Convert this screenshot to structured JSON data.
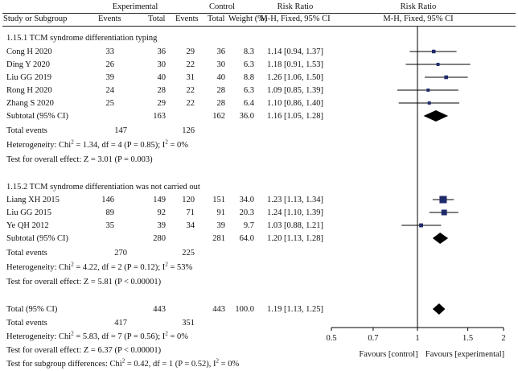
{
  "header": {
    "experimental": "Experimental",
    "control": "Control",
    "risk_ratio": "Risk Ratio",
    "study_or_subgroup": "Study or Subgroup",
    "events": "Events",
    "total": "Total",
    "weight": "Weight (%)",
    "method": "M-H, Fixed, 95% CI"
  },
  "subgroups": [
    {
      "title": "1.15.1 TCM syndrome differentiation typing",
      "studies": [
        {
          "name": "Cong H 2020",
          "exp_events": "33",
          "exp_total": "36",
          "ctrl_events": "29",
          "ctrl_total": "36",
          "weight": "8.3",
          "ci": "1.14 [0.94, 1.37]"
        },
        {
          "name": "Ding Y 2020",
          "exp_events": "26",
          "exp_total": "30",
          "ctrl_events": "22",
          "ctrl_total": "30",
          "weight": "6.3",
          "ci": "1.18 [0.91, 1.53]"
        },
        {
          "name": "Liu GG 2019",
          "exp_events": "39",
          "exp_total": "40",
          "ctrl_events": "31",
          "ctrl_total": "40",
          "weight": "8.8",
          "ci": "1.26 [1.06, 1.50]"
        },
        {
          "name": "Rong H 2020",
          "exp_events": "24",
          "exp_total": "28",
          "ctrl_events": "22",
          "ctrl_total": "28",
          "weight": "6.3",
          "ci": "1.09 [0.85, 1.39]"
        },
        {
          "name": "Zhang S 2020",
          "exp_events": "25",
          "exp_total": "29",
          "ctrl_events": "22",
          "ctrl_total": "28",
          "weight": "6.4",
          "ci": "1.10 [0.86, 1.40]"
        }
      ],
      "subtotal": {
        "label": "Subtotal (95% CI)",
        "exp_total": "163",
        "ctrl_total": "162",
        "weight": "36.0",
        "ci": "1.16 [1.05, 1.28]"
      },
      "total_events": {
        "label": "Total events",
        "exp": "147",
        "ctrl": "126"
      },
      "heterogeneity": {
        "prefix": "Heterogeneity: Chi",
        "sup1": "2",
        "mid": " = 1.34, df = 4 (P = 0.85); I",
        "sup2": "2",
        "suffix": " = 0%"
      },
      "overall_effect": "Test for overall effect: Z = 3.01 (P = 0.003)"
    },
    {
      "title": "1.15.2 TCM syndrome differentiation was not carried out",
      "studies": [
        {
          "name": "Liang XH 2015",
          "exp_events": "146",
          "exp_total": "149",
          "ctrl_events": "120",
          "ctrl_total": "151",
          "weight": "34.0",
          "ci": "1.23 [1.13, 1.34]"
        },
        {
          "name": "Liu GG 2015",
          "exp_events": "89",
          "exp_total": "92",
          "ctrl_events": "71",
          "ctrl_total": "91",
          "weight": "20.3",
          "ci": "1.24 [1.10, 1.39]"
        },
        {
          "name": "Ye QH 2012",
          "exp_events": "35",
          "exp_total": "39",
          "ctrl_events": "34",
          "ctrl_total": "39",
          "weight": "9.7",
          "ci": "1.03 [0.88, 1.21]"
        }
      ],
      "subtotal": {
        "label": "Subtotal (95% CI)",
        "exp_total": "280",
        "ctrl_total": "281",
        "weight": "64.0",
        "ci": "1.20 [1.13, 1.28]"
      },
      "total_events": {
        "label": "Total events",
        "exp": "270",
        "ctrl": "225"
      },
      "heterogeneity": {
        "prefix": "Heterogeneity: Chi",
        "sup1": "2",
        "mid": " = 4.22, df = 2 (P = 0.12); I",
        "sup2": "2",
        "suffix": " = 53%"
      },
      "overall_effect": "Test for overall effect: Z = 5.81 (P < 0.00001)"
    }
  ],
  "total": {
    "label": "Total (95% CI)",
    "exp_total": "443",
    "ctrl_total": "443",
    "weight": "100.0",
    "ci": "1.19 [1.13, 1.25]",
    "events_label": "Total events",
    "exp_events": "417",
    "ctrl_events": "351",
    "heterogeneity": {
      "prefix": "Heterogeneity: Chi",
      "sup1": "2",
      "mid": " = 5.83, df = 7 (P = 0.56); I",
      "sup2": "2",
      "suffix": " = 0%"
    },
    "overall_effect": "Test for overall effect: Z = 6.37 (P < 0.00001)",
    "subgroup_diff": {
      "prefix": "Test for subgroup differences: Chi",
      "sup1": "2",
      "mid": " = 0.42, df = 1 (P = 0.52), I",
      "sup2": "2",
      "suffix": " = 0%"
    }
  },
  "chart_data": {
    "type": "forest",
    "title": "Risk Ratio",
    "subtitle": "M-H, Fixed, 95% CI",
    "x_scale": "log",
    "xlim": [
      0.5,
      2
    ],
    "ticks": [
      0.5,
      0.7,
      1,
      1.5,
      2
    ],
    "tick_labels": [
      "0.5",
      "0.7",
      "1",
      "1.5",
      "2"
    ],
    "favours_left": "Favours [control]",
    "favours_right": "Favours [experimental]",
    "colors": {
      "marker": "#1f2a6b",
      "diamond": "#000000",
      "line": "#000000"
    },
    "studies": [
      {
        "name": "Cong H 2020",
        "rr": 1.14,
        "lo": 0.94,
        "hi": 1.37,
        "weight": 8.3
      },
      {
        "name": "Ding Y 2020",
        "rr": 1.18,
        "lo": 0.91,
        "hi": 1.53,
        "weight": 6.3
      },
      {
        "name": "Liu GG 2019",
        "rr": 1.26,
        "lo": 1.06,
        "hi": 1.5,
        "weight": 8.8
      },
      {
        "name": "Rong H 2020",
        "rr": 1.09,
        "lo": 0.85,
        "hi": 1.39,
        "weight": 6.3
      },
      {
        "name": "Zhang S 2020",
        "rr": 1.1,
        "lo": 0.86,
        "hi": 1.4,
        "weight": 6.4
      },
      {
        "name": "Liang XH 2015",
        "rr": 1.23,
        "lo": 1.13,
        "hi": 1.34,
        "weight": 34.0
      },
      {
        "name": "Liu GG 2015",
        "rr": 1.24,
        "lo": 1.1,
        "hi": 1.39,
        "weight": 20.3
      },
      {
        "name": "Ye QH 2012",
        "rr": 1.03,
        "lo": 0.88,
        "hi": 1.21,
        "weight": 9.7
      }
    ],
    "pooled": [
      {
        "name": "Subtotal 1.15.1",
        "rr": 1.16,
        "lo": 1.05,
        "hi": 1.28
      },
      {
        "name": "Subtotal 1.15.2",
        "rr": 1.2,
        "lo": 1.13,
        "hi": 1.28
      },
      {
        "name": "Total",
        "rr": 1.19,
        "lo": 1.13,
        "hi": 1.25
      }
    ]
  }
}
